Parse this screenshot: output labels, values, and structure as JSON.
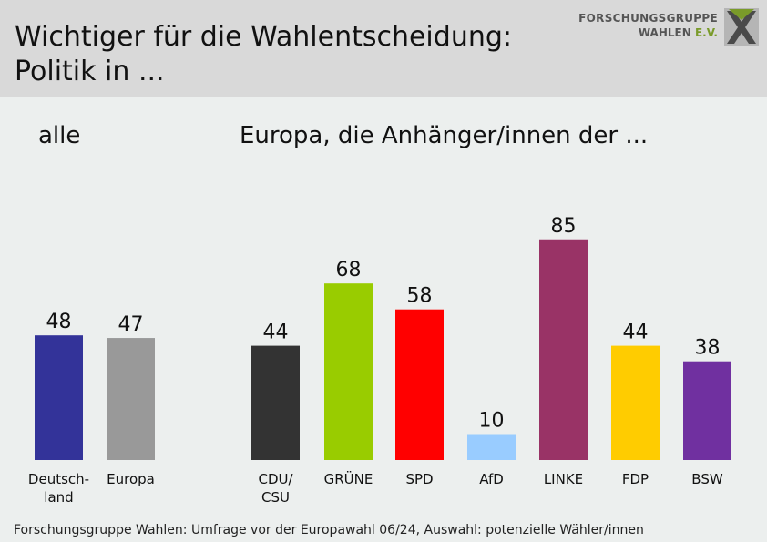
{
  "header": {
    "title": "Wichtiger für die Wahlentscheidung:\nPolitik in ...",
    "logo": {
      "line1": "FORSCHUNGSGRUPPE",
      "line2_main": "WAHLEN ",
      "line2_accent": "E.V."
    }
  },
  "groups": {
    "left_title": "alle",
    "right_title": "Europa, die Anhänger/innen der ..."
  },
  "chart_data": {
    "type": "bar",
    "categories": [
      "Deutsch-\nland",
      "Europa",
      "CDU/\nCSU",
      "GRÜNE",
      "SPD",
      "AfD",
      "LINKE",
      "FDP",
      "BSW"
    ],
    "values": [
      48,
      47,
      44,
      68,
      58,
      10,
      85,
      44,
      38
    ],
    "colors": [
      "#333399",
      "#999999",
      "#333333",
      "#99cc00",
      "#ff0000",
      "#99ccff",
      "#993366",
      "#ffcc00",
      "#7030a0"
    ],
    "title": "Wichtiger für die Wahlentscheidung: Politik in ...",
    "xlabel": "",
    "ylabel": "",
    "ylim": [
      0,
      100
    ],
    "grid": false
  },
  "footer": "Forschungsgruppe Wahlen: Umfrage vor der Europawahl 06/24, Auswahl: potenzielle Wähler/innen",
  "colors": {
    "header_bg": "#d9d9d9",
    "page_bg": "#ecefee",
    "logo_accent": "#7a9b2a"
  }
}
